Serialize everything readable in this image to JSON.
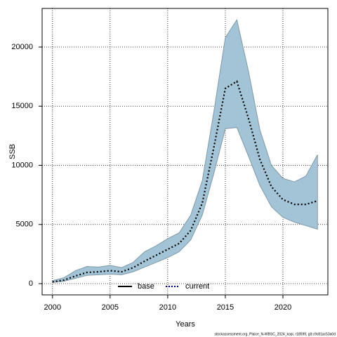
{
  "chart_data": {
    "type": "line",
    "xlabel": "Years",
    "ylabel": "SSB",
    "footer": "stockassessment.org, Plaice_N-WBSC_2024_kopi, r18599, git:c9c81ac53a0d",
    "x": [
      2000,
      2001,
      2002,
      2003,
      2004,
      2005,
      2006,
      2007,
      2008,
      2009,
      2010,
      2011,
      2012,
      2013,
      2014,
      2015,
      2016,
      2017,
      2018,
      2019,
      2020,
      2021,
      2022,
      2023
    ],
    "series": [
      {
        "color": "#00008b",
        "band_color": "#a3c4d6",
        "values": [
          150,
          300,
          650,
          950,
          1000,
          1100,
          1000,
          1350,
          1900,
          2400,
          2900,
          3400,
          4500,
          6800,
          11500,
          16500,
          17100,
          14000,
          10500,
          8200,
          7100,
          6700,
          6700,
          7000
        ],
        "upper": [
          250,
          500,
          1100,
          1450,
          1400,
          1550,
          1350,
          1800,
          2700,
          3200,
          3800,
          4300,
          5800,
          8700,
          14500,
          20800,
          22300,
          18000,
          13000,
          10000,
          8900,
          8600,
          9100,
          10900
        ],
        "lower": [
          100,
          200,
          450,
          700,
          750,
          800,
          750,
          1000,
          1400,
          1800,
          2200,
          2700,
          3700,
          5800,
          9300,
          13100,
          13200,
          10800,
          8300,
          6500,
          5600,
          5200,
          4900,
          4600
        ]
      }
    ],
    "legend_entries": [
      {
        "name": "base",
        "color": "#000000",
        "style": "solid"
      },
      {
        "name": "current",
        "color": "#00008b",
        "style": "dotted"
      }
    ],
    "xlim": [
      1999.1,
      2023.9
    ],
    "ylim": [
      -950,
      23264
    ],
    "xticks": [
      2000,
      2005,
      2010,
      2015,
      2020
    ],
    "yticks": [
      0,
      5000,
      10000,
      15000,
      20000
    ],
    "grid": true
  }
}
